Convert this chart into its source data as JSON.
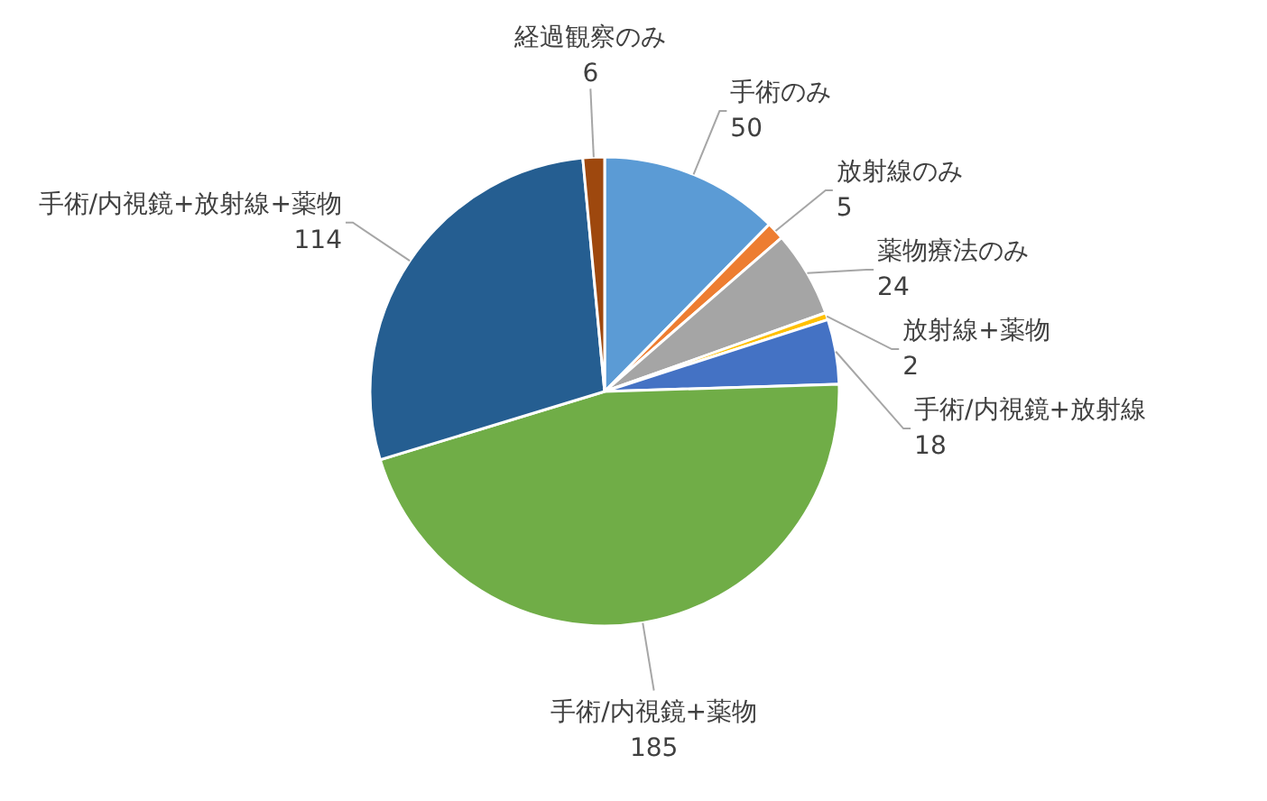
{
  "chart_data": {
    "type": "pie",
    "categories": [
      "手術のみ",
      "放射線のみ",
      "薬物療法のみ",
      "放射線+薬物",
      "手術/内視鏡+放射線",
      "手術/内視鏡+薬物",
      "手術/内視鏡+放射線+薬物",
      "経過観察のみ"
    ],
    "values": [
      50,
      5,
      24,
      2,
      18,
      185,
      114,
      6
    ],
    "colors": [
      "#5b9bd5",
      "#ed7d31",
      "#a5a5a5",
      "#ffc000",
      "#4472c4",
      "#70ad47",
      "#255e91",
      "#9e480e"
    ],
    "data_labels": true
  }
}
